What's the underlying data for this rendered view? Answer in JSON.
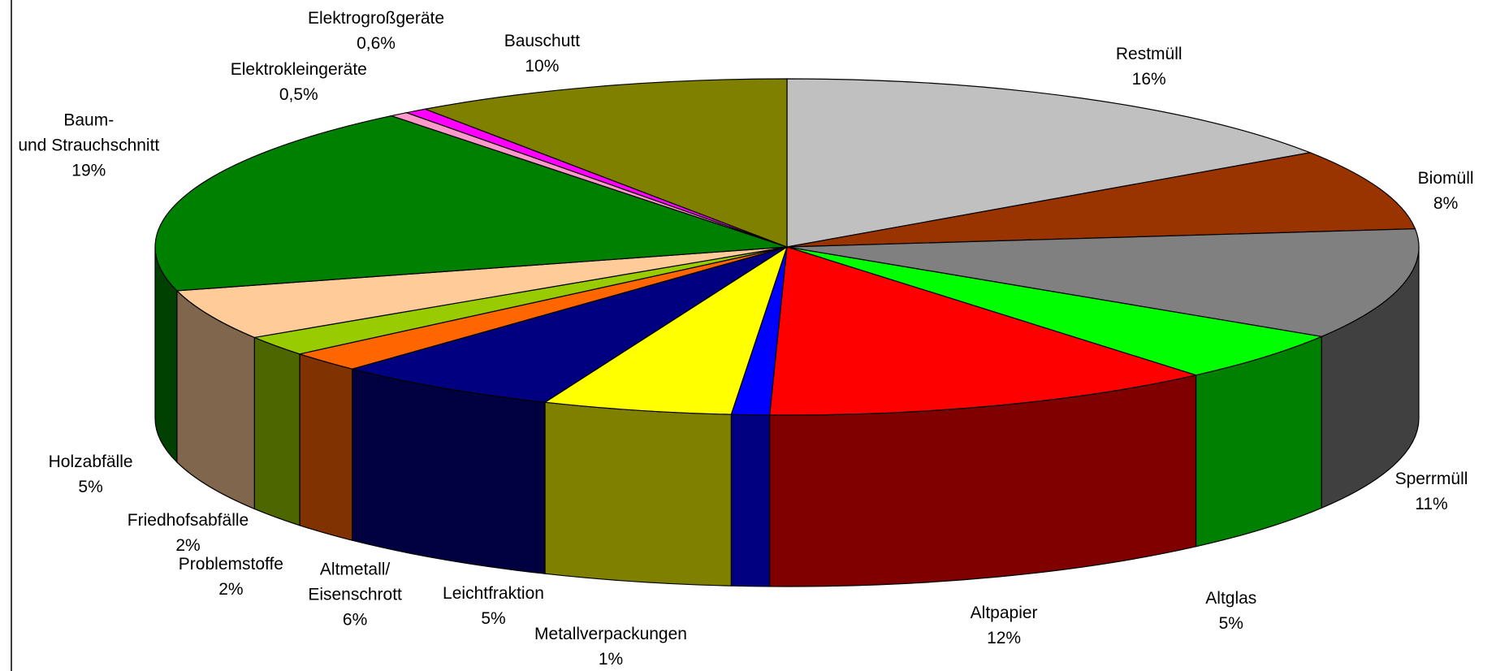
{
  "chart_data": {
    "type": "pie3d",
    "categories": [
      "Restmüll",
      "Biomüll",
      "Sperrmüll",
      "Altglas",
      "Altpapier",
      "Metallverpackungen",
      "Leichtfraktion",
      "Altmetall/\nEisenschrott",
      "Problemstoffe",
      "Friedhofsabfälle",
      "Holzabfälle",
      "Baum-\nund Strauchschnitt",
      "Elektrokleingeräte",
      "Elektrogroßgeräte",
      "Bauschutt"
    ],
    "values": [
      16,
      8,
      11,
      5,
      12,
      1,
      5,
      6,
      2,
      2,
      5,
      19,
      0.5,
      0.6,
      10
    ],
    "value_labels": [
      "16%",
      "8%",
      "11%",
      "5%",
      "12%",
      "1%",
      "5%",
      "6%",
      "2%",
      "2%",
      "5%",
      "19%",
      "0,5%",
      "0,6%",
      "10%"
    ],
    "colors": [
      "#C0C0C0",
      "#993300",
      "#808080",
      "#00FF00",
      "#FF0000",
      "#0000FF",
      "#FFFF00",
      "#000080",
      "#FF6600",
      "#99CC00",
      "#FFCC99",
      "#008000",
      "#FF99CC",
      "#FF00FF",
      "#808000"
    ]
  }
}
